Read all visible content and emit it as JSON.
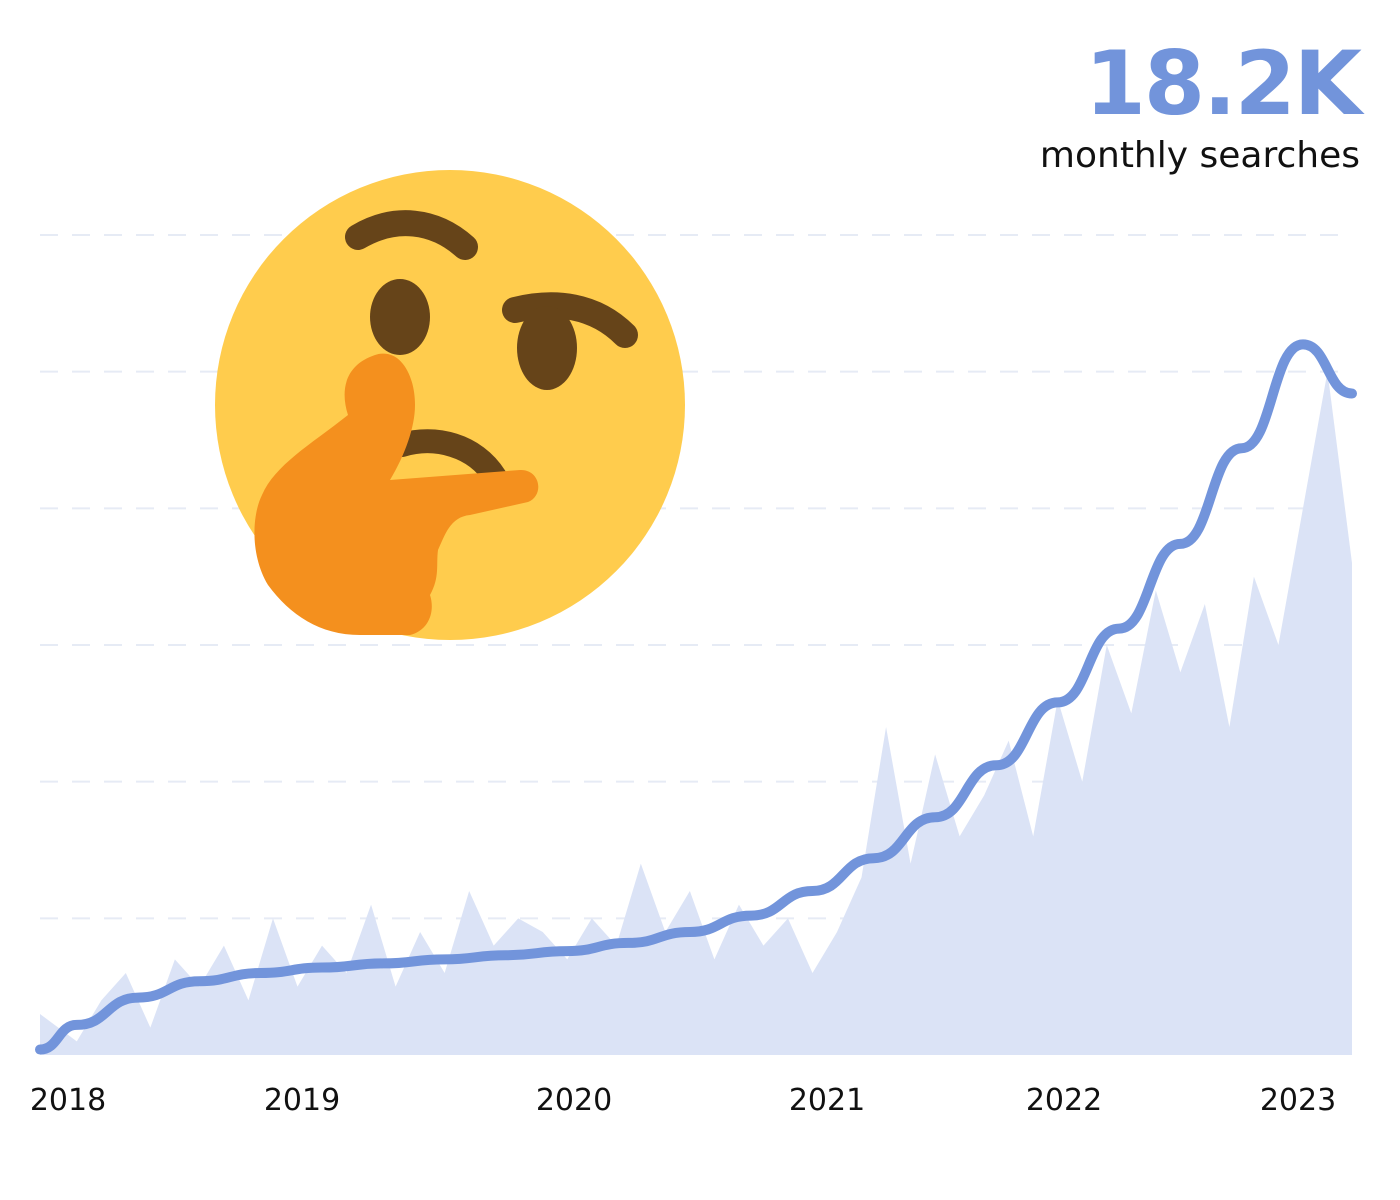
{
  "headline": {
    "value": "18.2K",
    "label": "monthly searches"
  },
  "colors": {
    "accent": "#7294db",
    "area": "#dbe3f6",
    "grid": "#e6ebf5",
    "emoji_face": "#ffcc4d",
    "emoji_features": "#664419",
    "emoji_hand": "#f4901e"
  },
  "icons": {
    "emoji": "thinking-face-icon"
  },
  "chart_data": {
    "type": "area",
    "title": "",
    "xlabel": "",
    "ylabel": "",
    "grid": true,
    "legend": "none",
    "x_ticks": [
      "2018",
      "2019",
      "2020",
      "2021",
      "2022",
      "2023"
    ],
    "x_range": [
      2017.85,
      2023.2
    ],
    "y_range": [
      0,
      30
    ],
    "series": [
      {
        "type": "area",
        "x": [
          2017.85,
          2018.0,
          2018.1,
          2018.2,
          2018.3,
          2018.4,
          2018.5,
          2018.6,
          2018.7,
          2018.8,
          2018.9,
          2019.0,
          2019.1,
          2019.2,
          2019.3,
          2019.4,
          2019.5,
          2019.6,
          2019.7,
          2019.8,
          2019.9,
          2020.0,
          2020.1,
          2020.2,
          2020.3,
          2020.4,
          2020.5,
          2020.6,
          2020.7,
          2020.8,
          2020.9,
          2021.0,
          2021.1,
          2021.2,
          2021.3,
          2021.4,
          2021.5,
          2021.6,
          2021.7,
          2021.8,
          2021.9,
          2022.0,
          2022.1,
          2022.2,
          2022.3,
          2022.4,
          2022.5,
          2022.6,
          2022.7,
          2022.8,
          2022.9,
          2023.0,
          2023.1,
          2023.2
        ],
        "y": [
          1.5,
          0.5,
          2.0,
          3.0,
          1.0,
          3.5,
          2.5,
          4.0,
          2.0,
          5.0,
          2.5,
          4.0,
          3.0,
          5.5,
          2.5,
          4.5,
          3.0,
          6.0,
          4.0,
          5.0,
          4.5,
          3.5,
          5.0,
          4.0,
          7.0,
          4.5,
          6.0,
          3.5,
          5.5,
          4.0,
          5.0,
          3.0,
          4.5,
          6.5,
          12.0,
          7.0,
          11.0,
          8.0,
          9.5,
          11.5,
          8.0,
          13.0,
          10.0,
          15.0,
          12.5,
          17.0,
          14.0,
          16.5,
          12.0,
          17.5,
          15.0,
          20.0,
          25.0,
          18.0
        ]
      },
      {
        "type": "line",
        "x": [
          2017.85,
          2018.0,
          2018.25,
          2018.5,
          2018.75,
          2019.0,
          2019.25,
          2019.5,
          2019.75,
          2020.0,
          2020.25,
          2020.5,
          2020.75,
          2021.0,
          2021.25,
          2021.5,
          2021.75,
          2022.0,
          2022.25,
          2022.5,
          2022.75,
          2023.0,
          2023.2
        ],
        "y": [
          0.2,
          1.1,
          2.1,
          2.7,
          3.0,
          3.2,
          3.35,
          3.5,
          3.65,
          3.8,
          4.1,
          4.5,
          5.1,
          6.0,
          7.2,
          8.7,
          10.6,
          12.9,
          15.6,
          18.7,
          22.2,
          26.0,
          24.2
        ]
      }
    ]
  }
}
